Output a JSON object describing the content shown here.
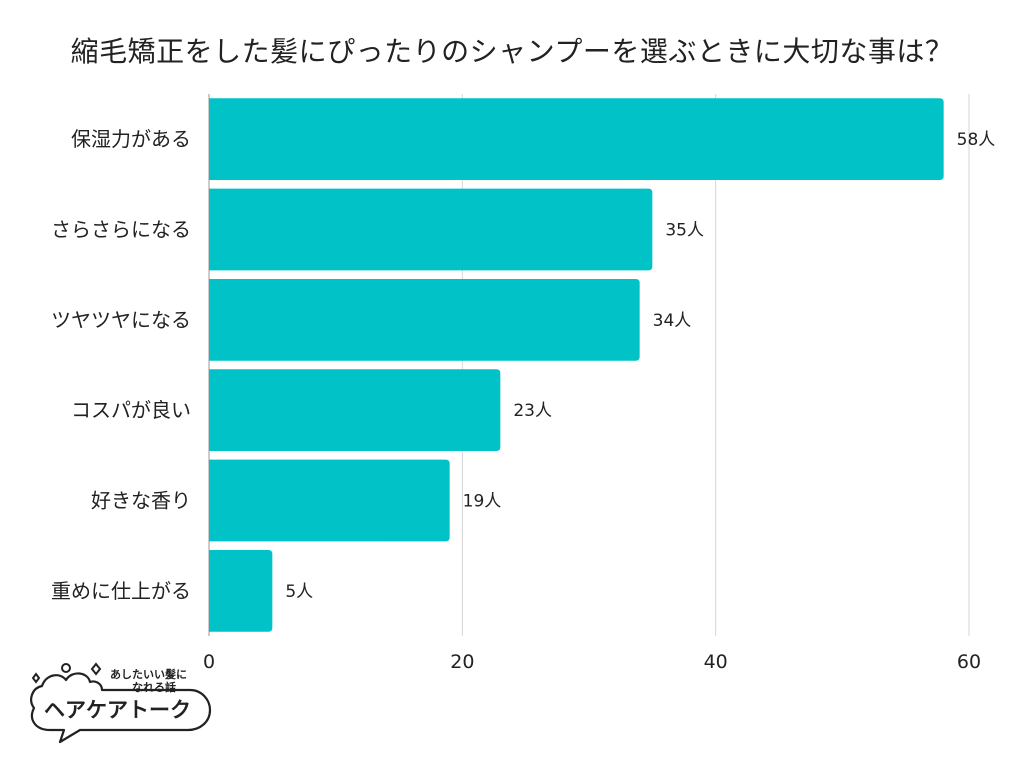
{
  "chart_data": {
    "type": "bar",
    "orientation": "horizontal",
    "title": "縮毛矯正をした髪にぴったりのシャンプーを選ぶときに大切な事は？",
    "categories": [
      "保湿力がある",
      "さらさらになる",
      "ツヤツヤになる",
      "コスパが良い",
      "好きな香り",
      "重めに仕上がる"
    ],
    "values": [
      58,
      35,
      34,
      23,
      19,
      5
    ],
    "value_suffix": "人",
    "xlim": [
      0,
      60
    ],
    "xticks": [
      0,
      20,
      40,
      60
    ],
    "xlabel": "",
    "ylabel": "",
    "grid": true,
    "bar_color": "#00C2C7"
  },
  "logo": {
    "tagline_1": "あしたいい髪に",
    "tagline_2": "なれる話",
    "name": "ヘアケアトーク"
  }
}
